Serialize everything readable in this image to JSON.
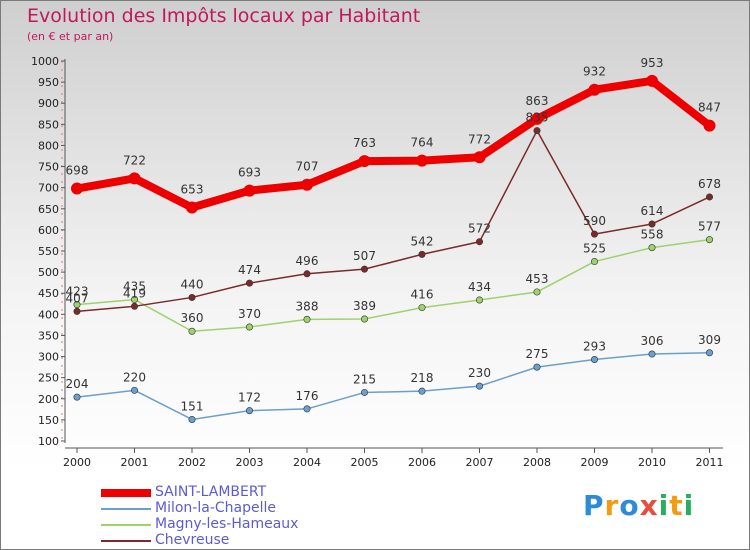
{
  "title": "Evolution des Impôts locaux par Habitant",
  "subtitle": "(en € et par an)",
  "logo": "Proxiti",
  "logo_letters": [
    {
      "ch": "P",
      "color": "#2e8bd8"
    },
    {
      "ch": "r",
      "color": "#f39c12"
    },
    {
      "ch": "o",
      "color": "#2e8bd8"
    },
    {
      "ch": "x",
      "color": "#e74c3c"
    },
    {
      "ch": "i",
      "color": "#27ae60"
    },
    {
      "ch": "t",
      "color": "#f39c12"
    },
    {
      "ch": "i",
      "color": "#27ae60"
    }
  ],
  "chart_data": {
    "type": "line",
    "title": "Evolution des Impôts locaux par Habitant",
    "subtitle": "(en € et par an)",
    "xlabel": "",
    "ylabel": "",
    "ylim": [
      100,
      1000
    ],
    "y_ticks": [
      100,
      150,
      200,
      250,
      300,
      350,
      400,
      450,
      500,
      550,
      600,
      650,
      700,
      750,
      800,
      850,
      900,
      950,
      1000
    ],
    "categories": [
      "2000",
      "2001",
      "2002",
      "2003",
      "2004",
      "2005",
      "2006",
      "2007",
      "2008",
      "2009",
      "2010",
      "2011"
    ],
    "legend_position": "bottom-left",
    "grid": false,
    "series": [
      {
        "name": "SAINT-LAMBERT",
        "color": "#ee0000",
        "values": [
          698,
          722,
          653,
          693,
          707,
          763,
          764,
          772,
          863,
          932,
          953,
          847
        ]
      },
      {
        "name": "Milon-la-Chapelle",
        "color": "#6a9fcf",
        "values": [
          204,
          220,
          151,
          172,
          176,
          215,
          218,
          230,
          275,
          293,
          306,
          309
        ]
      },
      {
        "name": "Magny-les-Hameaux",
        "color": "#9ed26b",
        "values": [
          423,
          435,
          360,
          370,
          388,
          389,
          416,
          434,
          453,
          525,
          558,
          577
        ]
      },
      {
        "name": "Chevreuse",
        "color": "#7a2a2a",
        "values": [
          407,
          419,
          440,
          474,
          496,
          507,
          542,
          572,
          835,
          590,
          614,
          678
        ]
      }
    ]
  }
}
